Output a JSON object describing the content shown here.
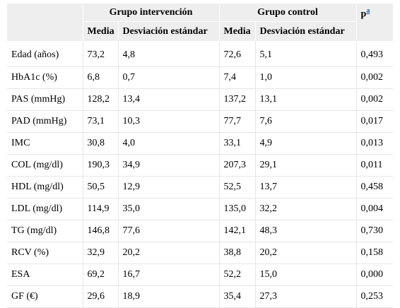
{
  "header": {
    "group1": "Grupo intervención",
    "group2": "Grupo control",
    "p_label": "p",
    "p_footnote": "a",
    "mean": "Media",
    "sd": "Desviación estándar"
  },
  "rows": [
    {
      "label": "Edad (años)",
      "m1": "73,2",
      "sd1": "4,8",
      "m2": "72,6",
      "sd2": "5,1",
      "p": "0,493"
    },
    {
      "label": "HbA1c (%)",
      "m1": "6,8",
      "sd1": "0,7",
      "m2": "7,4",
      "sd2": "1,0",
      "p": "0,002"
    },
    {
      "label": "PAS (mmHg)",
      "m1": "128,2",
      "sd1": "13,4",
      "m2": "137,2",
      "sd2": "13,1",
      "p": "0,002"
    },
    {
      "label": "PAD (mmHg)",
      "m1": "73,1",
      "sd1": "10,3",
      "m2": "77,7",
      "sd2": "7,6",
      "p": "0,017"
    },
    {
      "label": "IMC",
      "m1": "30,8",
      "sd1": "4,0",
      "m2": "33,1",
      "sd2": "4,9",
      "p": "0,013"
    },
    {
      "label": "COL (mg/dl)",
      "m1": "190,3",
      "sd1": "34,9",
      "m2": "207,3",
      "sd2": "29,1",
      "p": "0,011"
    },
    {
      "label": "HDL (mg/dl)",
      "m1": "50,5",
      "sd1": "12,9",
      "m2": "52,5",
      "sd2": "13,7",
      "p": "0,458"
    },
    {
      "label": "LDL (mg/dl)",
      "m1": "114,9",
      "sd1": "35,0",
      "m2": "135,0",
      "sd2": "32,2",
      "p": "0,004"
    },
    {
      "label": "TG (mg/dl)",
      "m1": "146,8",
      "sd1": "77,6",
      "m2": "142,1",
      "sd2": "48,3",
      "p": "0,730"
    },
    {
      "label": "RCV (%)",
      "m1": "32,9",
      "sd1": "20,2",
      "m2": "38,8",
      "sd2": "20,2",
      "p": "0,158"
    },
    {
      "label": "ESA",
      "m1": "69,2",
      "sd1": "16,7",
      "m2": "52,2",
      "sd2": "15,0",
      "p": "0,000"
    },
    {
      "label": "GF (€)",
      "m1": "29,6",
      "sd1": "18,9",
      "m2": "35,4",
      "sd2": "27,3",
      "p": "0,253"
    }
  ]
}
